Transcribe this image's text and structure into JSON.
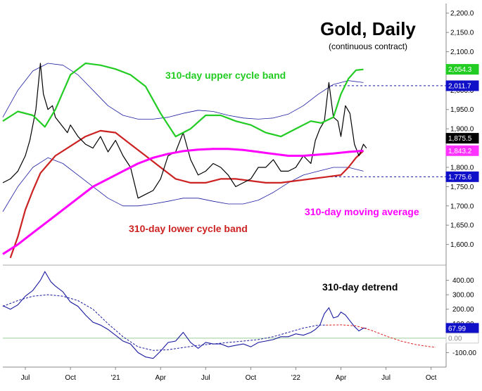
{
  "chart_data": [
    {
      "type": "line",
      "title": "Gold, Daily",
      "subtitle": "(continuous contract)",
      "ylim": [
        1550,
        2225
      ],
      "grid": false,
      "y_ticks": [
        "1,600.0",
        "1,650.0",
        "1,700.0",
        "1,750.0",
        "1,800.0",
        "1,850.0",
        "1,900.0",
        "1,950.0",
        "2,000.0",
        "2,050.0",
        "2,100.0",
        "2,150.0",
        "2,200.0"
      ],
      "x_ticks": [
        "Jul",
        "Oct",
        "'21",
        "Apr",
        "Jul",
        "Oct",
        "'22",
        "Apr",
        "Jul",
        "Oct"
      ],
      "x_tick_pos": [
        1.0,
        4.0,
        7.0,
        10.0,
        13.0,
        16.0,
        19.0,
        22.0,
        25.0,
        28.0
      ],
      "x_range": [
        -0.5,
        29.0
      ],
      "annotations": {
        "upper_band_label": "310-day upper cycle band",
        "lower_band_label": "310-day lower cycle band",
        "ma_label": "310-day moving average"
      },
      "tags": [
        {
          "label": "2,054.3",
          "value": 2054.3,
          "color": "#22cc22"
        },
        {
          "label": "2,011.7",
          "value": 2011.7,
          "color": "#1010c8"
        },
        {
          "label": "1,875.5",
          "value": 1875.5,
          "color": "#000000"
        },
        {
          "label": "1,843.2",
          "value": 1843.2,
          "color": "#ff33ff"
        },
        {
          "label": "1,775.6",
          "value": 1775.6,
          "color": "#1010c8"
        }
      ],
      "reference_lines": [
        2011.7,
        1775.6
      ],
      "series": [
        {
          "name": "Gold",
          "color": "#000000",
          "x": [
            -0.5,
            0.0,
            0.5,
            1.0,
            1.3,
            1.7,
            2.0,
            2.2,
            2.5,
            2.8,
            3.0,
            3.4,
            3.8,
            4.0,
            4.5,
            5.0,
            5.5,
            6.0,
            6.5,
            7.0,
            7.5,
            8.0,
            8.5,
            9.0,
            9.5,
            10.0,
            10.5,
            11.0,
            11.5,
            12.0,
            12.5,
            13.0,
            13.5,
            14.0,
            14.5,
            15.0,
            15.5,
            16.0,
            16.5,
            17.0,
            17.5,
            18.0,
            18.5,
            19.0,
            19.5,
            20.0,
            20.3,
            20.6,
            20.9,
            21.2,
            21.5,
            21.8,
            22.0,
            22.3,
            22.6,
            22.9,
            23.2,
            23.5,
            23.7
          ],
          "values": [
            1760,
            1770,
            1790,
            1830,
            1870,
            1950,
            2070,
            1990,
            1950,
            1960,
            1930,
            1910,
            1890,
            1910,
            1880,
            1860,
            1850,
            1880,
            1840,
            1870,
            1830,
            1800,
            1720,
            1730,
            1740,
            1770,
            1830,
            1840,
            1890,
            1820,
            1780,
            1790,
            1810,
            1800,
            1780,
            1750,
            1760,
            1770,
            1800,
            1800,
            1820,
            1790,
            1790,
            1800,
            1830,
            1810,
            1870,
            1900,
            1920,
            2020,
            1930,
            1920,
            1880,
            1960,
            1940,
            1860,
            1830,
            1860,
            1850
          ]
        },
        {
          "name": "310-day upper cycle band",
          "color": "#22cc22",
          "x": [
            -0.5,
            0.5,
            1.5,
            2.3,
            3.0,
            4.0,
            5.0,
            6.0,
            7.0,
            8.0,
            9.0,
            10.0,
            11.0,
            12.0,
            13.0,
            14.0,
            15.0,
            16.0,
            17.0,
            18.0,
            19.0,
            20.0,
            20.7,
            21.5,
            22.0,
            22.5,
            23.0,
            23.5
          ],
          "values": [
            1920,
            1945,
            1935,
            1905,
            1950,
            2040,
            2070,
            2065,
            2055,
            2040,
            2010,
            1940,
            1880,
            1900,
            1935,
            1935,
            1920,
            1910,
            1890,
            1880,
            1900,
            1920,
            1915,
            1930,
            1990,
            2030,
            2052,
            2054
          ]
        },
        {
          "name": "310-day lower cycle band",
          "color": "#cc2222",
          "x": [
            0.0,
            0.5,
            1.0,
            1.5,
            2.0,
            3.0,
            4.0,
            5.0,
            6.0,
            7.0,
            8.0,
            9.0,
            10.0,
            11.0,
            12.0,
            13.0,
            14.0,
            15.0,
            16.0,
            17.0,
            18.0,
            19.0,
            20.0,
            21.0,
            22.0,
            22.5,
            23.0,
            23.5
          ],
          "values": [
            1565,
            1620,
            1690,
            1740,
            1785,
            1830,
            1855,
            1880,
            1895,
            1890,
            1860,
            1830,
            1800,
            1770,
            1760,
            1760,
            1770,
            1770,
            1765,
            1760,
            1760,
            1765,
            1770,
            1775,
            1780,
            1800,
            1825,
            1843
          ]
        },
        {
          "name": "310-day moving average",
          "color": "#ff00ff",
          "x": [
            -0.5,
            0.5,
            1.5,
            2.5,
            3.5,
            4.5,
            5.5,
            6.5,
            7.5,
            8.5,
            9.5,
            10.5,
            11.5,
            12.5,
            13.5,
            14.5,
            15.5,
            16.5,
            17.5,
            18.5,
            19.5,
            20.5,
            21.5,
            22.5,
            23.5
          ],
          "values": [
            1575,
            1600,
            1630,
            1660,
            1690,
            1720,
            1750,
            1770,
            1790,
            1810,
            1825,
            1835,
            1842,
            1846,
            1848,
            1848,
            1845,
            1840,
            1835,
            1830,
            1830,
            1833,
            1836,
            1840,
            1843
          ]
        },
        {
          "name": "Upper envelope",
          "color": "#1a1aa0",
          "x": [
            -0.5,
            0.5,
            1.5,
            2.5,
            3.5,
            4.5,
            5.5,
            6.5,
            7.5,
            8.5,
            9.5,
            10.5,
            11.5,
            12.5,
            13.5,
            14.5,
            15.5,
            16.5,
            17.5,
            18.5,
            19.5,
            20.5,
            21.5,
            22.5,
            23.5
          ],
          "values": [
            1930,
            2000,
            2050,
            2070,
            2065,
            2040,
            2000,
            1960,
            1935,
            1925,
            1925,
            1930,
            1940,
            1948,
            1945,
            1935,
            1928,
            1925,
            1928,
            1938,
            1960,
            1990,
            2015,
            2025,
            2020
          ]
        },
        {
          "name": "Lower envelope",
          "color": "#1a1aa0",
          "x": [
            -0.5,
            0.5,
            1.5,
            2.5,
            3.5,
            4.5,
            5.5,
            6.5,
            7.5,
            8.5,
            9.5,
            10.5,
            11.5,
            12.5,
            13.5,
            14.5,
            15.5,
            16.5,
            17.5,
            18.5,
            19.5,
            20.5,
            21.5,
            22.5,
            23.5
          ],
          "values": [
            1685,
            1750,
            1800,
            1825,
            1810,
            1780,
            1750,
            1720,
            1700,
            1700,
            1705,
            1712,
            1720,
            1720,
            1712,
            1705,
            1705,
            1715,
            1735,
            1760,
            1780,
            1790,
            1800,
            1800,
            1790
          ]
        }
      ]
    },
    {
      "type": "line",
      "title": "310-day detrend",
      "ylim": [
        -200,
        500
      ],
      "y_ticks": [
        "400.00",
        "300.00",
        "200.00",
        "100.00",
        "0.00",
        "-100.00"
      ],
      "y_tick_values": [
        400,
        300,
        200,
        100,
        0,
        -100
      ],
      "zero_line": 0,
      "tags": [
        {
          "label": "67.99",
          "value": 67.99,
          "color": "#1010c8"
        },
        {
          "label": "0.00",
          "value": 0.0,
          "color": "#ffffff"
        }
      ],
      "series": [
        {
          "name": "Detrend",
          "color": "#1a1aa0",
          "x": [
            -0.5,
            0.0,
            0.5,
            1.0,
            1.5,
            2.0,
            2.3,
            2.7,
            3.0,
            3.5,
            4.0,
            4.5,
            5.0,
            5.5,
            6.0,
            6.5,
            7.0,
            7.5,
            8.0,
            8.5,
            9.0,
            9.5,
            10.0,
            10.5,
            11.0,
            11.5,
            12.0,
            12.5,
            13.0,
            13.5,
            14.0,
            14.5,
            15.0,
            15.5,
            16.0,
            16.5,
            17.0,
            17.5,
            18.0,
            18.5,
            19.0,
            19.5,
            20.0,
            20.3,
            20.6,
            20.9,
            21.2,
            21.5,
            21.8,
            22.0,
            22.3,
            22.6,
            22.9,
            23.2,
            23.5,
            23.7
          ],
          "values": [
            225,
            200,
            230,
            290,
            330,
            400,
            460,
            390,
            360,
            320,
            250,
            220,
            160,
            110,
            90,
            60,
            20,
            -20,
            -40,
            -100,
            -130,
            -140,
            -90,
            -30,
            -20,
            40,
            -30,
            -70,
            -30,
            -40,
            -40,
            -60,
            -50,
            -40,
            -60,
            -30,
            -20,
            -10,
            10,
            10,
            30,
            20,
            40,
            60,
            90,
            170,
            210,
            140,
            150,
            180,
            160,
            120,
            80,
            50,
            70,
            68
          ]
        },
        {
          "name": "Detrend cycle",
          "color": "#1a1aa0",
          "dashed": true,
          "x": [
            -0.5,
            0.5,
            1.5,
            2.5,
            3.5,
            4.5,
            5.5,
            6.5,
            7.5,
            8.5,
            9.5,
            10.5,
            11.5,
            12.5,
            13.5,
            14.5,
            15.5,
            16.5,
            17.5,
            18.5,
            19.5,
            20.5,
            21.0
          ],
          "values": [
            220,
            260,
            290,
            300,
            290,
            260,
            200,
            100,
            10,
            -60,
            -85,
            -80,
            -65,
            -50,
            -40,
            -30,
            -20,
            -10,
            10,
            40,
            70,
            90,
            90
          ]
        },
        {
          "name": "Detrend projection",
          "color": "#dd2222",
          "dashed": true,
          "x": [
            21.0,
            22.0,
            23.0,
            24.0,
            25.0,
            26.0,
            27.0,
            28.0,
            28.3
          ],
          "values": [
            90,
            92,
            85,
            55,
            15,
            -20,
            -45,
            -60,
            -63
          ]
        }
      ]
    }
  ]
}
